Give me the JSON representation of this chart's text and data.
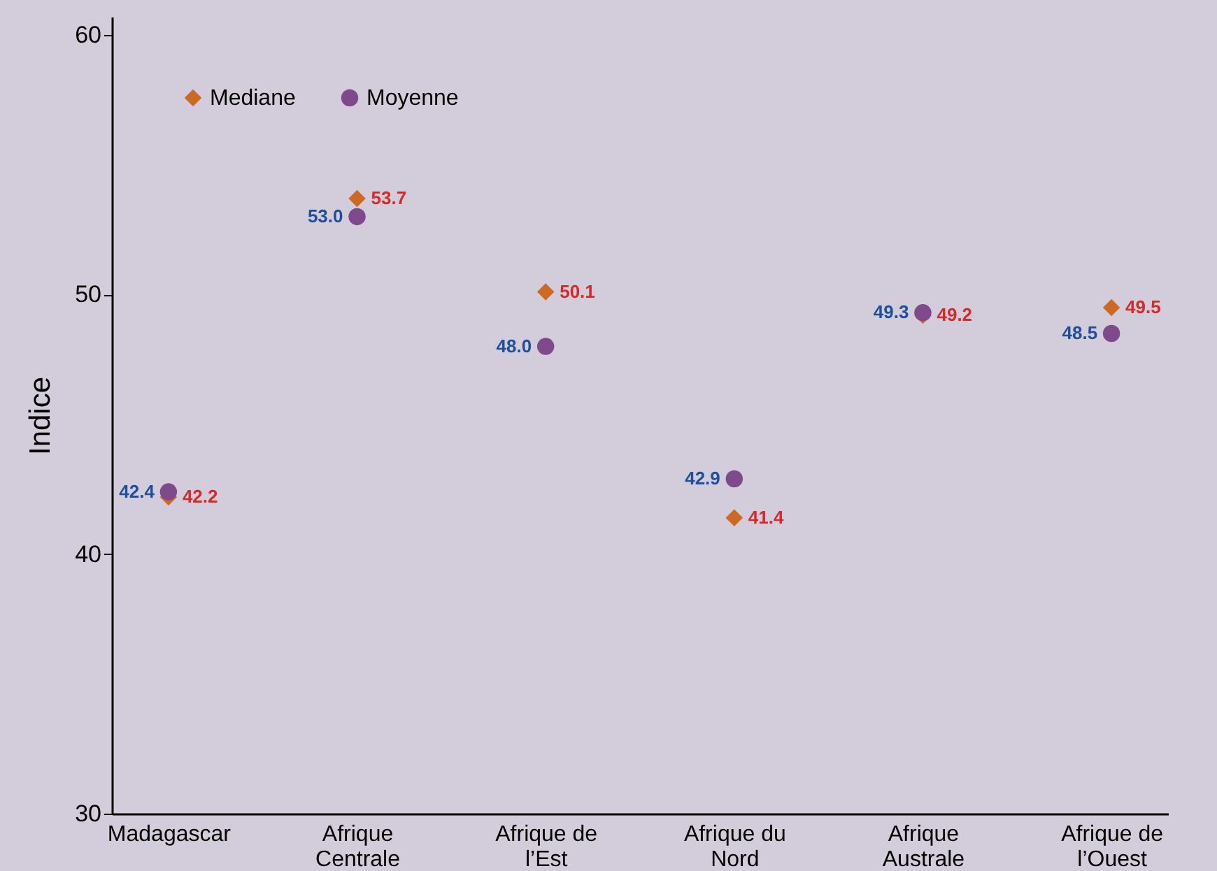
{
  "chart_data": {
    "type": "scatter",
    "ylabel": "Indice",
    "categories": [
      "Madagascar",
      "Afrique Centrale",
      "Afrique de l’Est",
      "Afrique du Nord",
      "Afrique Australe",
      "Afrique de l’Ouest"
    ],
    "series": [
      {
        "name": "Mediane",
        "color": "#cc6a24",
        "marker": "diamond",
        "values": [
          42.2,
          53.7,
          50.1,
          41.4,
          49.2,
          49.5
        ],
        "value_labels": [
          "42.2",
          "53.7",
          "50.1",
          "41.4",
          "49.2",
          "49.5"
        ]
      },
      {
        "name": "Moyenne",
        "color": "#7f4a8c",
        "marker": "circle",
        "values": [
          42.4,
          53.0,
          48.0,
          42.9,
          49.3,
          48.5
        ],
        "value_labels": [
          "42.4",
          "53.0",
          "48.0",
          "42.9",
          "49.3",
          "48.5"
        ]
      }
    ],
    "ylim": [
      30,
      60.7
    ],
    "yticks": [
      30,
      40,
      50,
      60
    ],
    "grid": false,
    "legend": "top left"
  }
}
